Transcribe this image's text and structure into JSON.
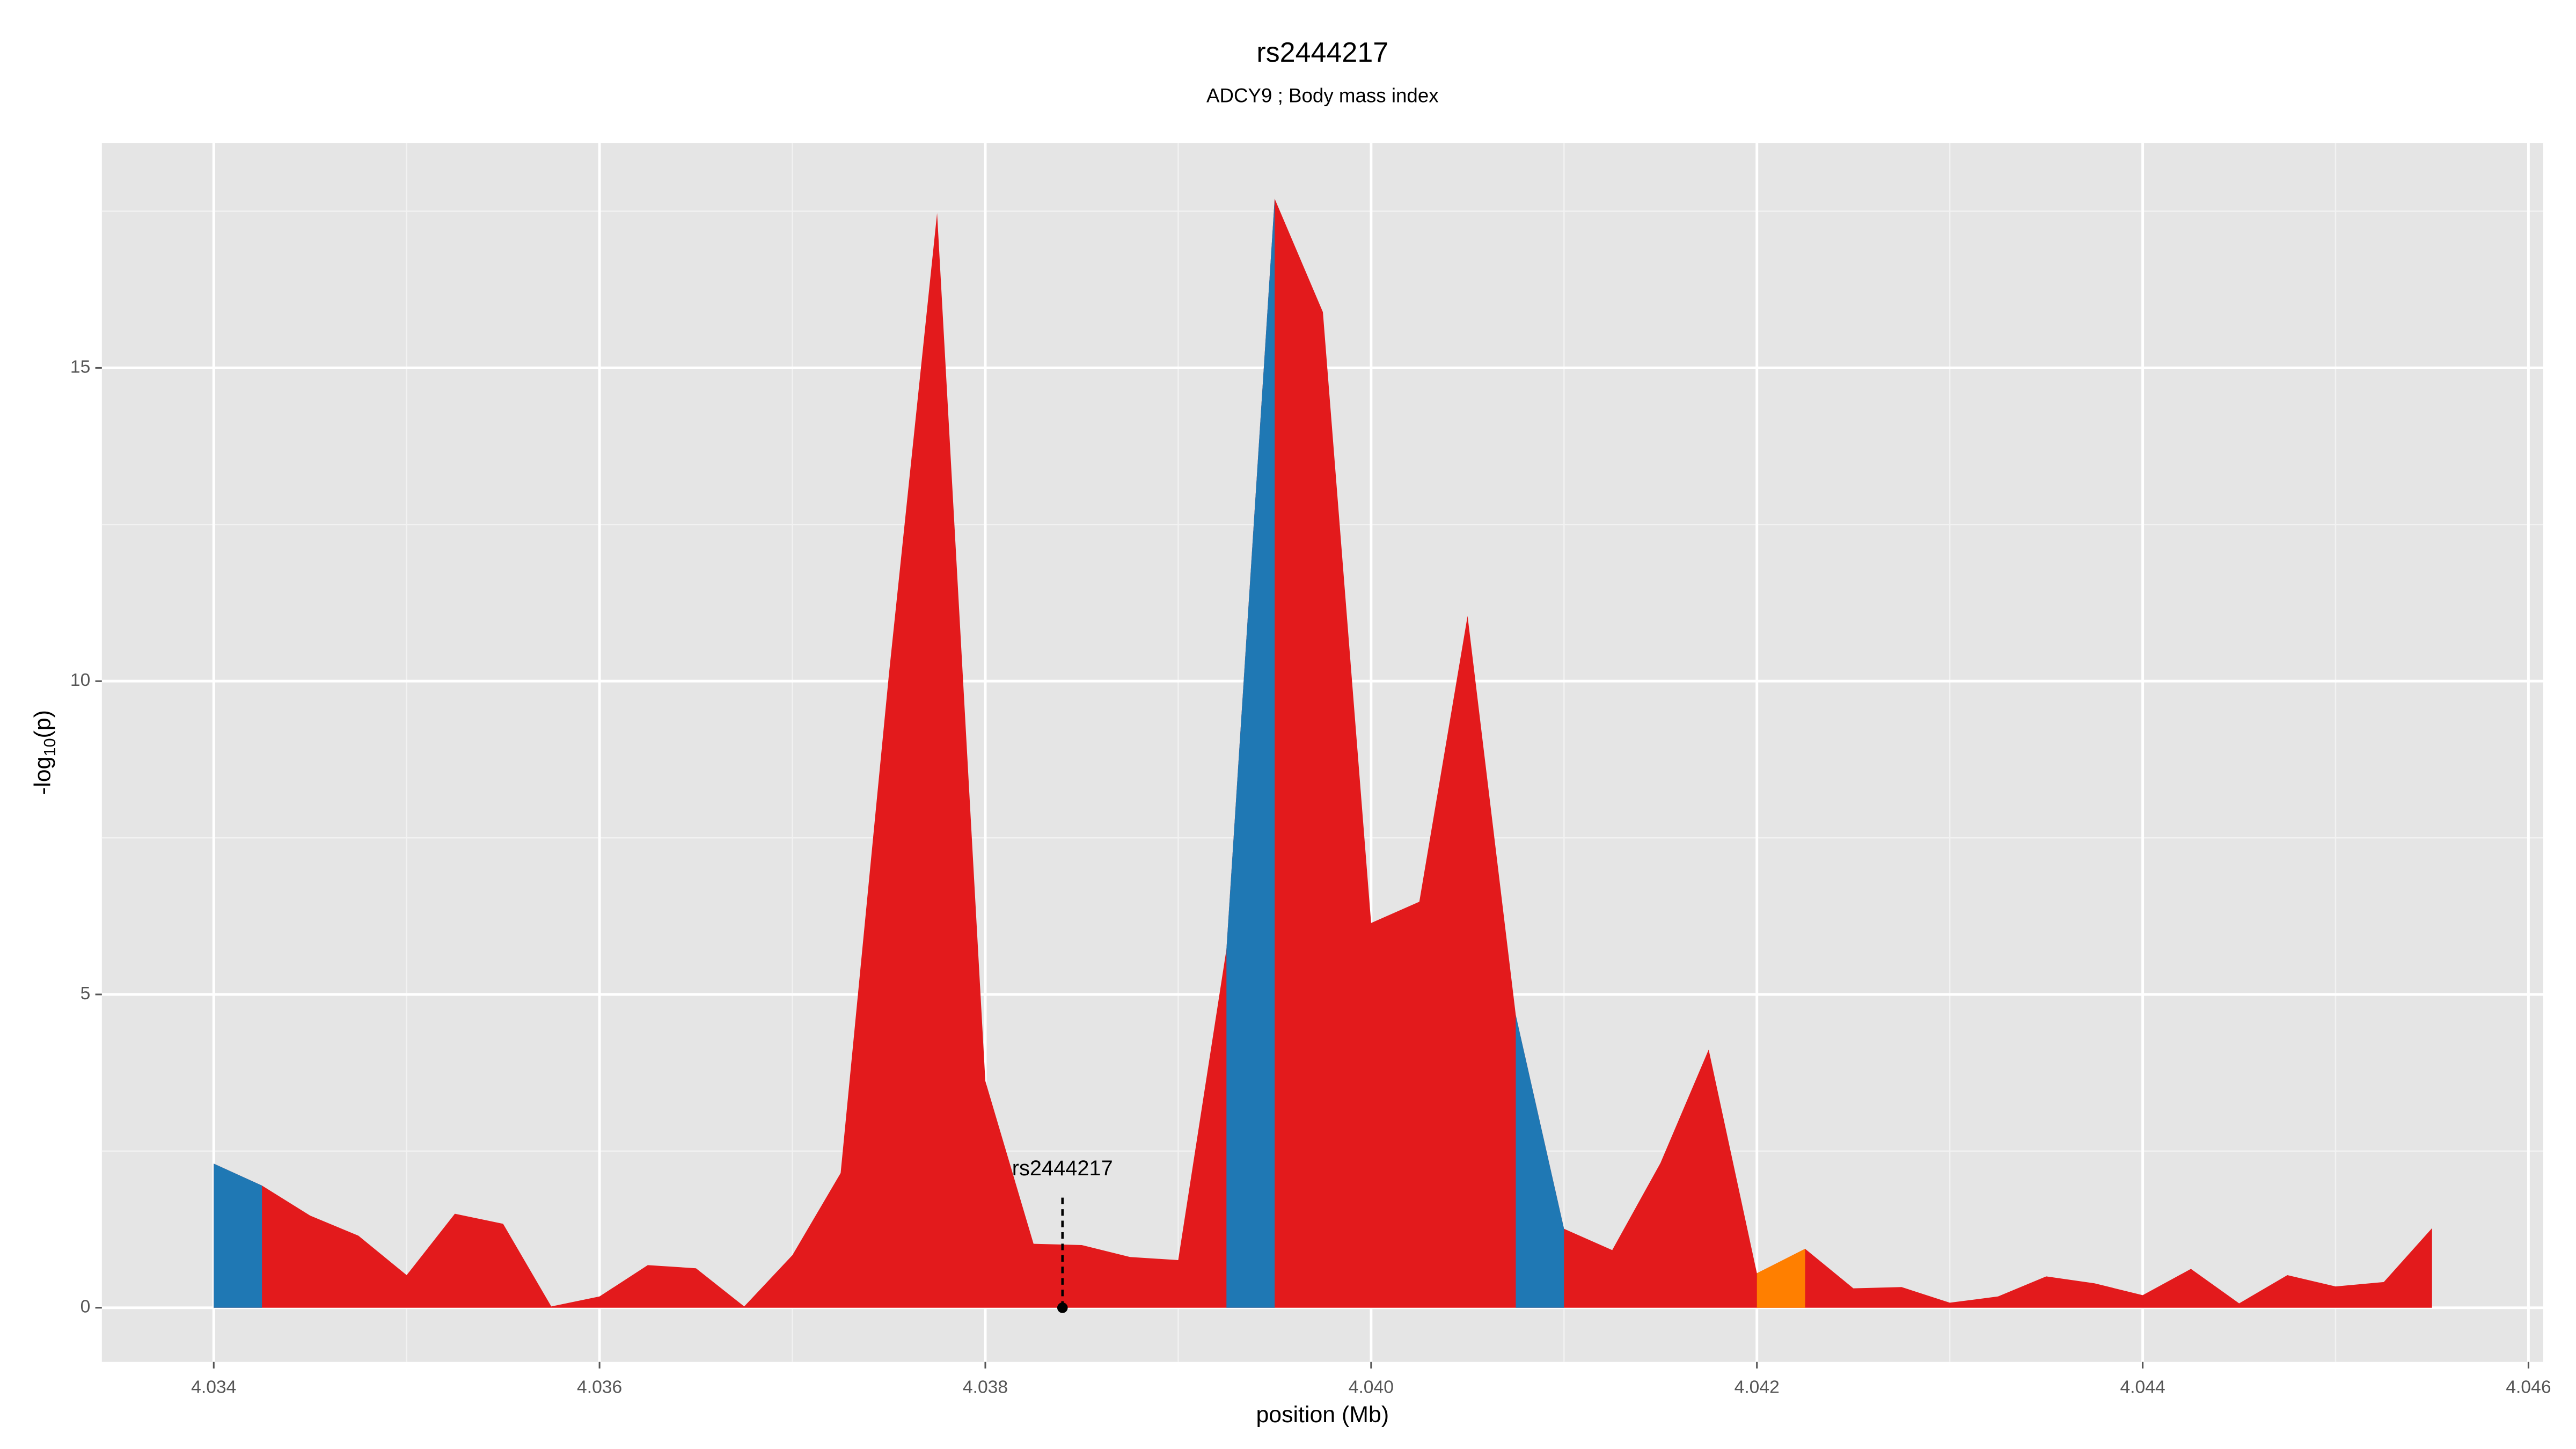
{
  "chart_data": {
    "type": "area",
    "title": "rs2444217",
    "subtitle": "ADCY9 ; Body mass index",
    "x_label": "position (Mb)",
    "y_label": {
      "prefix": "-log",
      "subscript": "10",
      "suffix": "(p)"
    },
    "x": [
      4.034,
      4.03425,
      4.0345,
      4.03475,
      4.035,
      4.03525,
      4.0355,
      4.03575,
      4.036,
      4.03625,
      4.0365,
      4.03675,
      4.037,
      4.03725,
      4.0375,
      4.03775,
      4.038,
      4.03825,
      4.0385,
      4.03875,
      4.039,
      4.03925,
      4.0395,
      4.03975,
      4.04,
      4.04025,
      4.0405,
      4.04075,
      4.041,
      4.04125,
      4.0415,
      4.04175,
      4.042,
      4.04225,
      4.0425,
      4.04275,
      4.043,
      4.04325,
      4.0435,
      4.04375,
      4.044,
      4.04425,
      4.0445,
      4.04475,
      4.045,
      4.04525,
      4.0455
    ],
    "values": [
      2.3,
      1.95,
      1.47,
      1.15,
      0.52,
      1.5,
      1.34,
      0.02,
      0.18,
      0.68,
      0.63,
      0.02,
      0.84,
      2.15,
      10.1,
      17.47,
      3.62,
      1.02,
      1.0,
      0.81,
      0.76,
      5.72,
      17.7,
      15.89,
      6.14,
      6.48,
      11.04,
      4.67,
      1.26,
      0.92,
      2.31,
      4.12,
      0.55,
      0.94,
      0.31,
      0.33,
      0.08,
      0.18,
      0.5,
      0.39,
      0.2,
      0.62,
      0.07,
      0.52,
      0.34,
      0.41,
      1.27
    ],
    "color": "#e31a1c",
    "regions": [
      {
        "xlim": [
          4.034,
          4.03425
        ],
        "color": "#1f78b4"
      },
      {
        "xlim": [
          4.03925,
          4.0395
        ],
        "color": "#1f78b4"
      },
      {
        "xlim": [
          4.04075,
          4.041
        ],
        "color": "#1f78b4"
      },
      {
        "xlim": [
          4.042,
          4.04225
        ],
        "color": "#ff7f00"
      }
    ],
    "annotation": {
      "text": "rs2444217",
      "x": 4.0384,
      "y": 0
    },
    "xlim": [
      4.03342,
      4.046076
    ],
    "ylim": [
      -0.865,
      18.59
    ],
    "xticks": [
      4.034,
      4.036,
      4.038,
      {
        "value": 4.04,
        "label": "4.040"
      },
      4.042,
      4.044,
      4.046
    ],
    "yticks": [
      0,
      5,
      10,
      15
    ],
    "grid": true,
    "minor_grid": true
  }
}
